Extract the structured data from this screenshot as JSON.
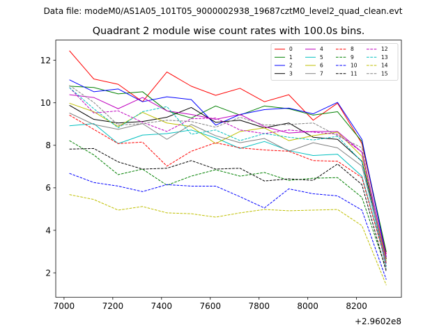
{
  "chart_data": {
    "type": "line",
    "suptitle": "Data file: modeM0/AS1A05_101T05_9000002938_19687cztM0_level2_quad_clean.evt",
    "title": "Quadrant 2 module wise count rates with 100.0s bins.",
    "xlabel": "",
    "ylabel": "",
    "offset_label": "+2.9602e8",
    "xlim": [
      6966,
      8384
    ],
    "ylim": [
      0.85,
      12.95
    ],
    "x_ticks": [
      7000,
      7200,
      7400,
      7600,
      7800,
      8000,
      8200
    ],
    "x_tick_labels": [
      "7000",
      "7200",
      "7400",
      "7600",
      "7800",
      "8000",
      "8200"
    ],
    "y_ticks": [
      2,
      4,
      6,
      8,
      10,
      12
    ],
    "y_tick_labels": [
      "2",
      "4",
      "6",
      "8",
      "10",
      "12"
    ],
    "legend_position": "top-right",
    "legend_ncol": 4,
    "x": [
      7022,
      7122,
      7222,
      7322,
      7422,
      7522,
      7622,
      7722,
      7822,
      7922,
      8022,
      8122,
      8222,
      8322
    ],
    "series": [
      {
        "name": "0",
        "color": "#ff0000",
        "dashed": false,
        "values": [
          12.45,
          11.12,
          10.87,
          10.05,
          11.45,
          10.78,
          10.35,
          10.68,
          10.05,
          10.38,
          9.18,
          9.98,
          8.08,
          2.88
        ]
      },
      {
        "name": "1",
        "color": "#008000",
        "dashed": false,
        "values": [
          10.78,
          10.72,
          10.42,
          10.52,
          9.62,
          9.28,
          9.85,
          9.42,
          9.85,
          9.72,
          9.42,
          9.58,
          8.18,
          2.98
        ]
      },
      {
        "name": "2",
        "color": "#0000ff",
        "dashed": false,
        "values": [
          11.08,
          10.52,
          10.65,
          10.05,
          10.28,
          10.15,
          8.95,
          9.45,
          9.68,
          9.75,
          9.48,
          10.02,
          8.28,
          2.75
        ]
      },
      {
        "name": "3",
        "color": "#000000",
        "dashed": false,
        "values": [
          9.88,
          9.22,
          9.05,
          9.12,
          9.32,
          9.78,
          9.08,
          9.18,
          8.82,
          9.05,
          8.38,
          8.28,
          7.25,
          2.65
        ]
      },
      {
        "name": "4",
        "color": "#bf00bf",
        "dashed": false,
        "values": [
          10.38,
          10.25,
          9.72,
          10.25,
          9.62,
          9.45,
          9.22,
          9.45,
          8.88,
          8.58,
          8.65,
          8.65,
          7.68,
          2.72
        ]
      },
      {
        "name": "5",
        "color": "#00bfbf",
        "dashed": false,
        "values": [
          8.92,
          9.02,
          8.08,
          8.48,
          8.55,
          8.72,
          8.35,
          7.85,
          8.18,
          7.75,
          7.52,
          7.58,
          6.55,
          2.45
        ]
      },
      {
        "name": "6",
        "color": "#bfbf00",
        "dashed": false,
        "values": [
          9.98,
          9.58,
          8.88,
          9.55,
          9.05,
          8.88,
          8.08,
          8.65,
          8.82,
          8.22,
          8.45,
          8.62,
          7.48,
          2.55
        ]
      },
      {
        "name": "7",
        "color": "#808080",
        "dashed": false,
        "values": [
          9.52,
          8.98,
          8.75,
          9.02,
          8.28,
          8.98,
          8.45,
          8.12,
          8.32,
          7.72,
          8.12,
          7.88,
          7.02,
          2.48
        ]
      },
      {
        "name": "8",
        "color": "#ff0000",
        "dashed": true,
        "values": [
          9.42,
          8.75,
          8.08,
          8.15,
          7.02,
          7.72,
          8.12,
          7.88,
          7.78,
          7.72,
          7.28,
          7.25,
          6.48,
          2.42
        ]
      },
      {
        "name": "9",
        "color": "#008000",
        "dashed": true,
        "values": [
          8.22,
          7.55,
          6.62,
          6.88,
          6.12,
          6.55,
          6.85,
          6.55,
          6.72,
          6.35,
          6.45,
          6.48,
          5.55,
          2.15
        ]
      },
      {
        "name": "10",
        "color": "#0000ff",
        "dashed": true,
        "values": [
          6.68,
          6.25,
          6.08,
          5.82,
          6.15,
          6.08,
          6.08,
          5.58,
          5.05,
          5.95,
          5.72,
          5.62,
          4.95,
          1.68
        ]
      },
      {
        "name": "11",
        "color": "#000000",
        "dashed": true,
        "values": [
          7.82,
          7.85,
          7.22,
          6.88,
          6.92,
          7.28,
          6.88,
          6.92,
          6.32,
          6.42,
          6.35,
          7.12,
          6.15,
          2.05
        ]
      },
      {
        "name": "12",
        "color": "#bf00bf",
        "dashed": true,
        "values": [
          10.72,
          9.52,
          9.62,
          9.08,
          8.65,
          9.25,
          9.28,
          8.72,
          8.55,
          8.72,
          8.62,
          8.52,
          7.68,
          2.32
        ]
      },
      {
        "name": "13",
        "color": "#00bfbf",
        "dashed": true,
        "values": [
          10.72,
          9.72,
          8.82,
          9.58,
          9.82,
          8.52,
          8.72,
          8.22,
          8.55,
          8.38,
          8.25,
          8.42,
          7.22,
          2.28
        ]
      },
      {
        "name": "14",
        "color": "#bfbf00",
        "dashed": true,
        "values": [
          5.68,
          5.45,
          4.95,
          5.12,
          4.82,
          4.78,
          4.62,
          4.82,
          4.98,
          4.92,
          4.95,
          4.98,
          4.22,
          1.42
        ]
      },
      {
        "name": "15",
        "color": "#808080",
        "dashed": true,
        "values": [
          10.82,
          10.02,
          8.95,
          9.02,
          9.18,
          9.12,
          8.85,
          9.32,
          8.95,
          8.98,
          9.05,
          8.45,
          7.88,
          2.12
        ]
      }
    ]
  }
}
